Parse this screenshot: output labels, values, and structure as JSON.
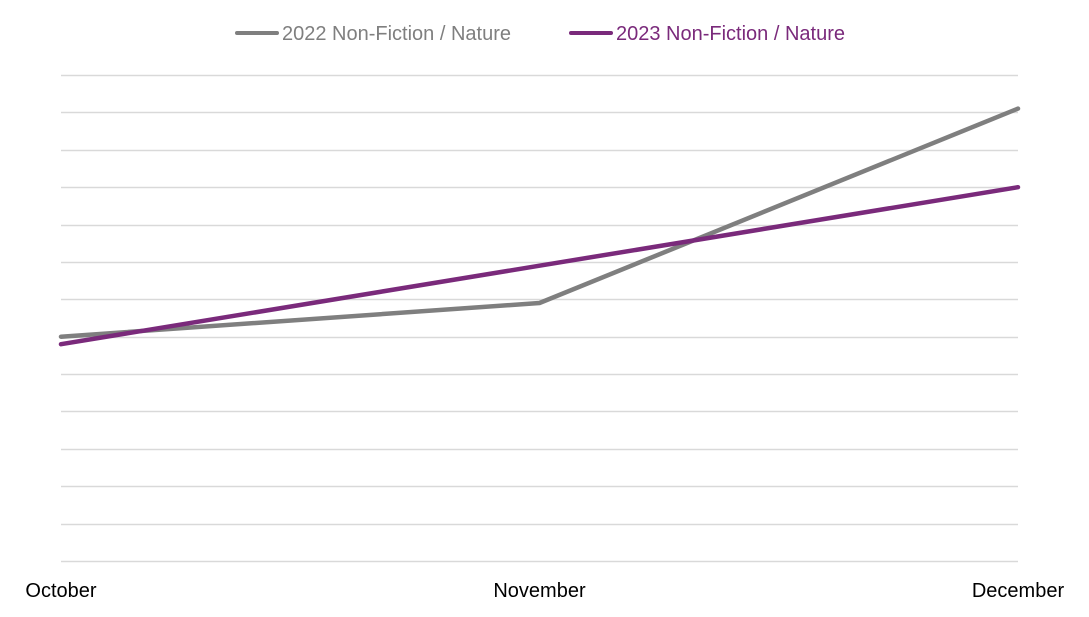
{
  "chart_data": {
    "type": "line",
    "categories": [
      "October",
      "November",
      "December"
    ],
    "series": [
      {
        "name": "2022 Non-Fiction / Nature",
        "color": "#7f7f7f",
        "values": [
          3.0,
          3.9,
          9.1
        ]
      },
      {
        "name": "2023 Non-Fiction / Nature",
        "color": "#7a2a7b",
        "values": [
          2.8,
          4.9,
          7.0
        ]
      }
    ],
    "ylim": [
      -3,
      10
    ],
    "grid": true,
    "legend_position": "top-center",
    "y_tick_labels_shown": false
  }
}
